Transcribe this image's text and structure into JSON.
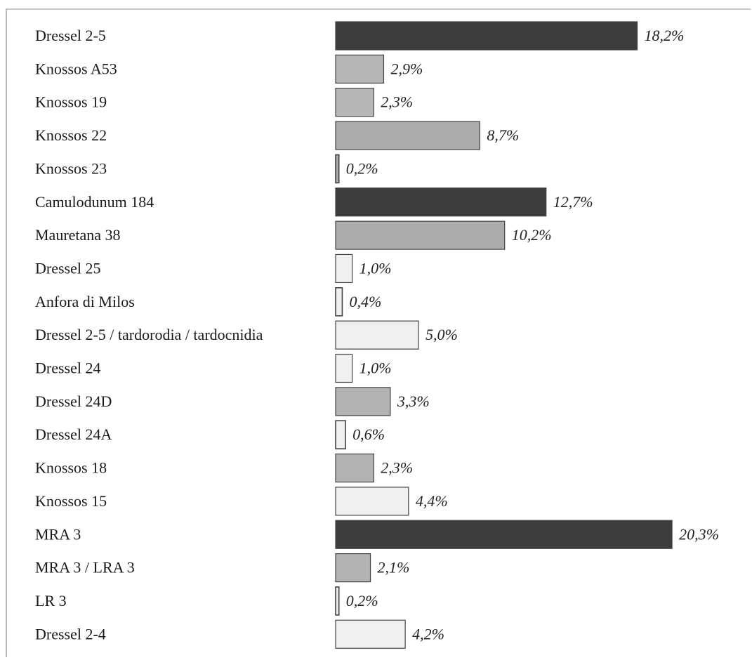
{
  "chart_data": {
    "type": "bar",
    "orientation": "horizontal",
    "title": "",
    "xlabel": "",
    "ylabel": "",
    "xlim": [
      0,
      20.3
    ],
    "grid": false,
    "legend": "none",
    "categories": [
      "Dressel 2-5",
      "Knossos A53",
      "Knossos 19",
      "Knossos 22",
      "Knossos 23",
      "Camulodunum 184",
      "Mauretana 38",
      "Dressel 25",
      "Anfora di Milos",
      "Dressel 2-5 / tardorodia / tardocnidia",
      "Dressel 24",
      "Dressel 24D",
      "Dressel 24A",
      "Knossos 18",
      "Knossos 15",
      "MRA 3",
      "MRA 3 / LRA 3",
      "LR 3",
      "Dressel 2-4"
    ],
    "values": [
      18.2,
      2.9,
      2.3,
      8.7,
      0.2,
      12.7,
      10.2,
      1.0,
      0.4,
      5.0,
      1.0,
      3.3,
      0.6,
      2.3,
      4.4,
      20.3,
      2.1,
      0.2,
      4.2
    ],
    "value_labels": [
      "18,2%",
      "2,9%",
      "2,3%",
      "8,7%",
      "0,2%",
      "12,7%",
      "10,2%",
      "1,0%",
      "0,4%",
      "5,0%",
      "1,0%",
      "3,3%",
      "0,6%",
      "2,3%",
      "4,4%",
      "20,3%",
      "2,1%",
      "0,2%",
      "4,2%"
    ],
    "bar_colors": [
      "#3c3c3c",
      "#b7b7b7",
      "#b7b7b7",
      "#ababab",
      "#ababab",
      "#3c3c3c",
      "#ababab",
      "#f0f0f0",
      "#f0f0f0",
      "#efefef",
      "#f0f0f0",
      "#b3b3b3",
      "#f0f0f0",
      "#b3b3b3",
      "#efefef",
      "#3c3c3c",
      "#b3b3b3",
      "#f0f0f0",
      "#efefef"
    ]
  }
}
